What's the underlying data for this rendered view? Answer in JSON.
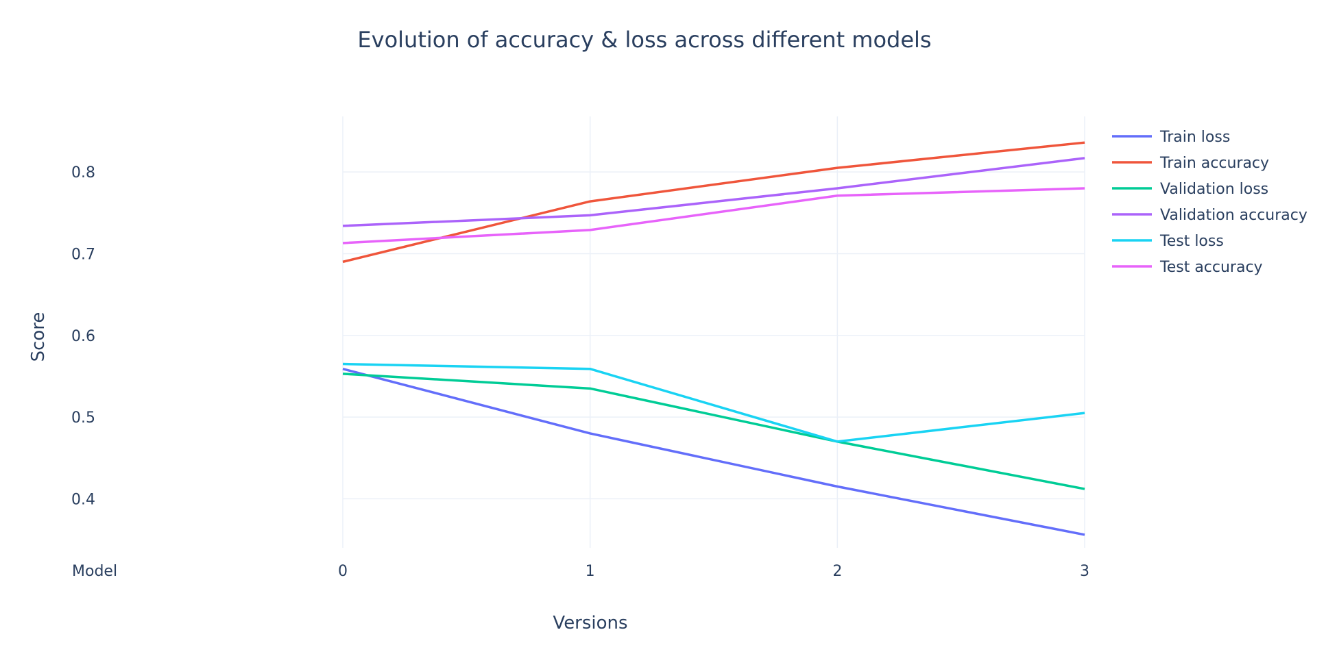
{
  "chart_data": {
    "type": "line",
    "title": "Evolution of accuracy & loss across different models",
    "xlabel": "Versions",
    "ylabel": "Score",
    "x_axis_row_label": "Model",
    "x": [
      0,
      1,
      2,
      3
    ],
    "xlim": [
      0,
      3
    ],
    "ylim": [
      0.34,
      0.868
    ],
    "yticks": [
      0.4,
      0.5,
      0.6,
      0.7,
      0.8
    ],
    "grid": true,
    "legend_position": "top-right",
    "series": [
      {
        "name": "Train loss",
        "color": "#636efa",
        "values": [
          0.559,
          0.48,
          0.415,
          0.356
        ]
      },
      {
        "name": "Train accuracy",
        "color": "#ef553b",
        "values": [
          0.69,
          0.764,
          0.805,
          0.836
        ]
      },
      {
        "name": "Validation loss",
        "color": "#00cc96",
        "values": [
          0.553,
          0.535,
          0.47,
          0.412
        ]
      },
      {
        "name": "Validation accuracy",
        "color": "#ab63fa",
        "values": [
          0.734,
          0.747,
          0.78,
          0.817
        ]
      },
      {
        "name": "Test loss",
        "color": "#19d3f3",
        "values": [
          0.565,
          0.559,
          0.47,
          0.505
        ]
      },
      {
        "name": "Test accuracy",
        "color": "#e763fa",
        "values": [
          0.713,
          0.729,
          0.771,
          0.78
        ]
      }
    ]
  }
}
